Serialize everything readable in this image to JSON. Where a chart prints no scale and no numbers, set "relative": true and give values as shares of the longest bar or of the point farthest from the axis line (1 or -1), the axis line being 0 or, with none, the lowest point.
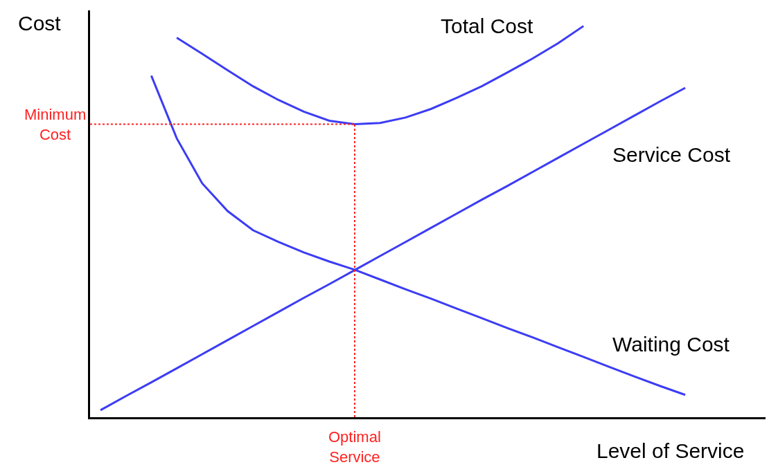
{
  "chart_data": {
    "type": "line",
    "relative": true,
    "xlabel": "Level of Service",
    "ylabel": "Cost",
    "legend": false,
    "marker": "none",
    "line_style": "solid",
    "categories": [
      null,
      null,
      null,
      null,
      null,
      null,
      null,
      null,
      null,
      null,
      null,
      null,
      null,
      null,
      null,
      null,
      null,
      null,
      null,
      null,
      null,
      null,
      null,
      null
    ],
    "series": [
      {
        "name": "Total Cost",
        "color": "#3c3cf5",
        "values": [
          null,
          null,
          null,
          0.97,
          0.929,
          0.887,
          0.846,
          0.811,
          0.781,
          0.758,
          0.749,
          0.752,
          0.766,
          0.788,
          0.816,
          0.846,
          0.881,
          0.917,
          0.956,
          1.0,
          null,
          null,
          null,
          null
        ]
      },
      {
        "name": "Service Cost",
        "color": "#3c3cf5",
        "values": [
          0.018,
          0.054,
          0.089,
          0.125,
          0.161,
          0.197,
          0.233,
          0.269,
          0.305,
          0.34,
          0.376,
          0.412,
          0.448,
          0.484,
          0.52,
          0.556,
          0.591,
          0.627,
          0.663,
          0.699,
          0.735,
          0.771,
          0.807,
          0.842
        ]
      },
      {
        "name": "Waiting Cost",
        "color": "#3c3cf5",
        "values": [
          null,
          null,
          0.873,
          0.713,
          0.598,
          0.527,
          0.478,
          0.448,
          0.421,
          0.398,
          0.377,
          0.352,
          0.327,
          0.303,
          0.278,
          0.253,
          0.228,
          0.204,
          0.179,
          0.154,
          0.129,
          0.104,
          0.08,
          0.057
        ]
      }
    ],
    "ref_lines": [
      {
        "axis": "y",
        "value": 0.749,
        "label": "Minimum Cost",
        "color": "#ff2020",
        "line_style": "dotted"
      }
    ],
    "annotations": [
      "Optimal Service"
    ]
  }
}
